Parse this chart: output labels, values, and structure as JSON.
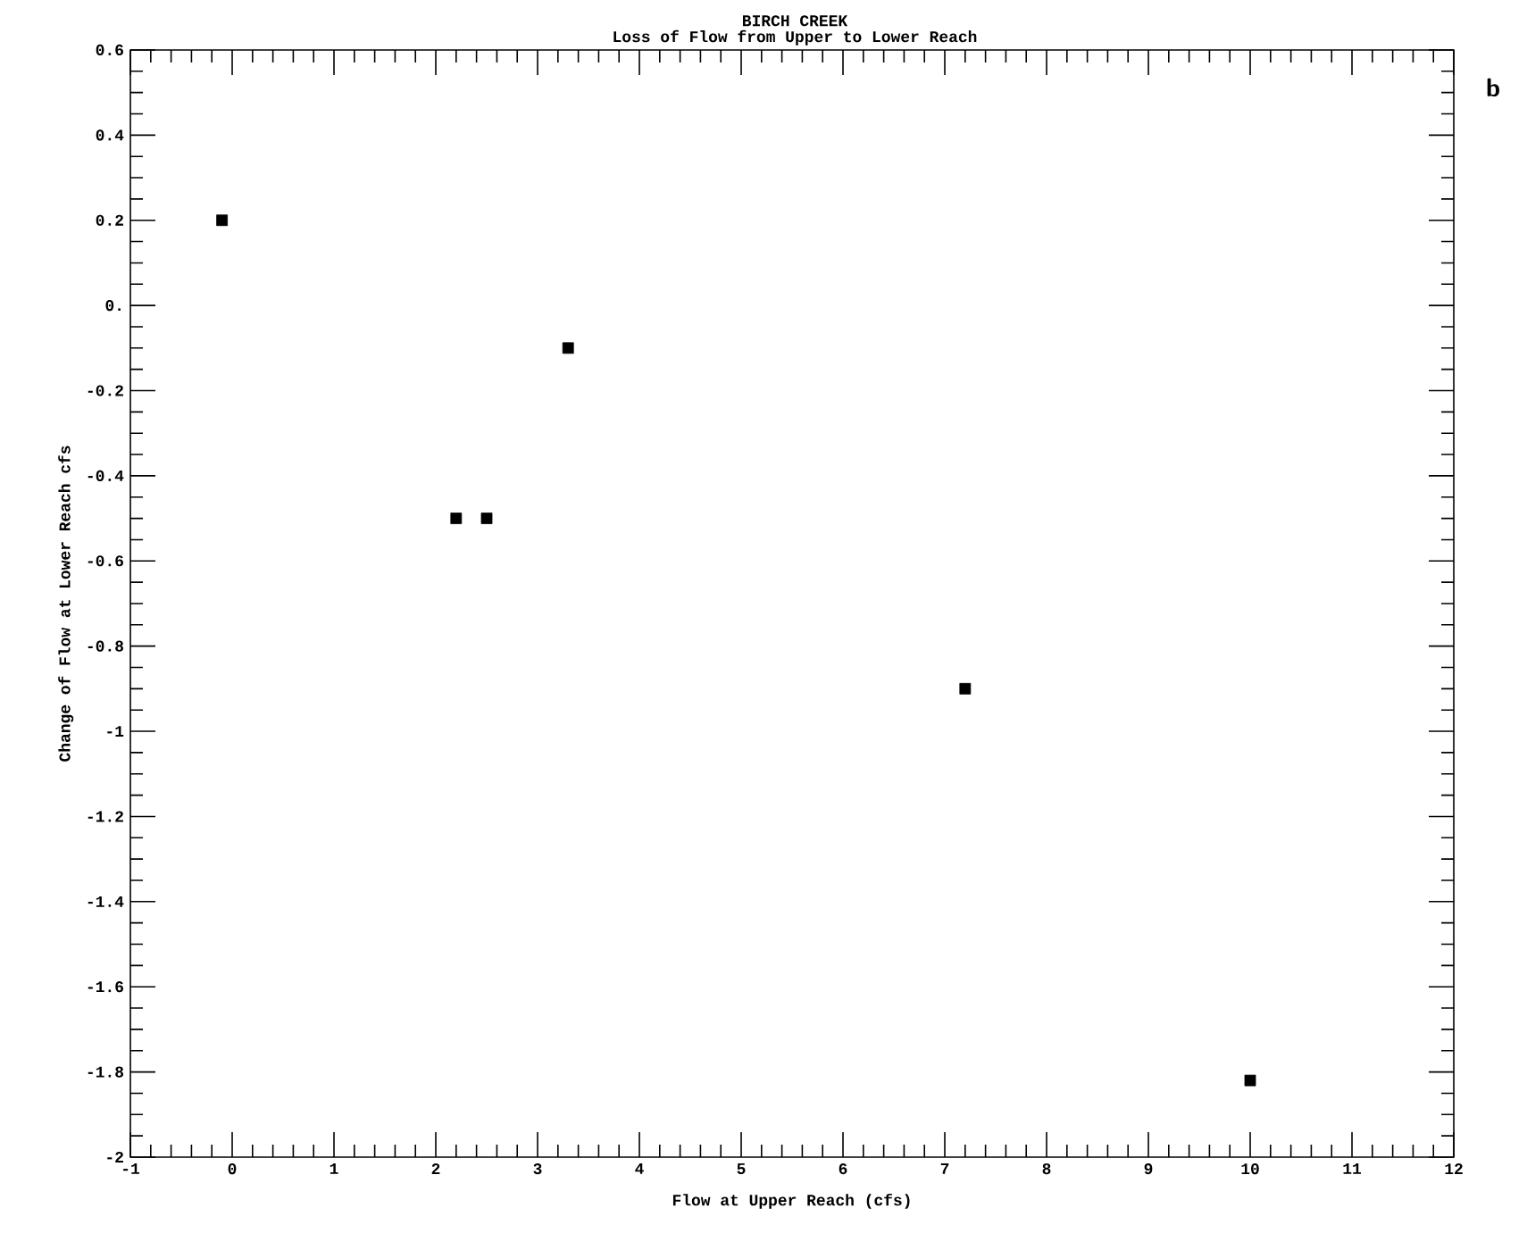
{
  "chart_data": {
    "type": "scatter",
    "title": "BIRCH CREEK",
    "subtitle": "Loss of Flow from Upper to Lower Reach",
    "xlabel": "Flow at Upper Reach (cfs)",
    "ylabel": "Change of Flow at Lower Reach cfs",
    "annotations": [
      "b"
    ],
    "x": [
      -0.1,
      2.2,
      2.5,
      3.3,
      7.2,
      10.0
    ],
    "series": [
      {
        "color": "#000000",
        "values": [
          0.2,
          -0.5,
          -0.5,
          -0.1,
          -0.9,
          -1.82
        ]
      }
    ],
    "marker": "square",
    "grid": false,
    "xlim": [
      -1,
      12
    ],
    "xticks": [
      -1,
      0,
      1,
      2,
      3,
      4,
      5,
      6,
      7,
      8,
      9,
      10,
      11,
      12
    ],
    "ylim": [
      -2,
      0.6
    ],
    "yticks": [
      -2,
      -1.8,
      -1.6,
      -1.4,
      -1.2,
      -1,
      -0.8,
      -0.6,
      -0.4,
      -0.2,
      {
        "value": 0,
        "label": "0."
      },
      0.2,
      0.4,
      0.6
    ]
  }
}
